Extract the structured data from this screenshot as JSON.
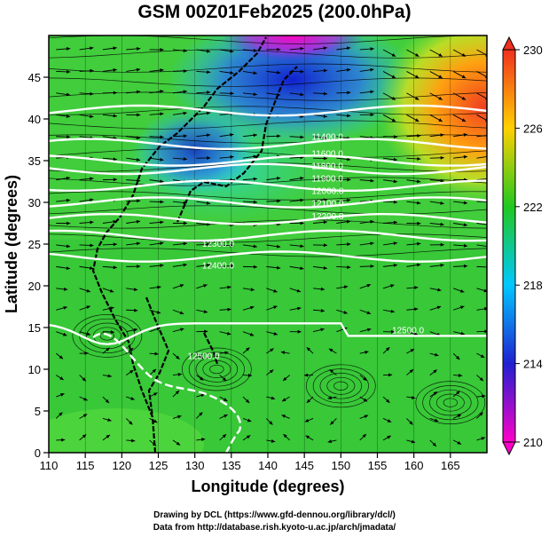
{
  "title": "GSM 00Z01Feb2025 (200.0hPa)",
  "xlabel": "Longitude (degrees)",
  "ylabel": "Latitude (degrees)",
  "credits": [
    "Drawing by DCL (https://www.gfd-dennou.org/library/dcl/)",
    "Data from http://database.rish.kyoto-u.ac.jp/arch/jmadata/"
  ],
  "chart_data": {
    "type": "heatmap",
    "title": "GSM 00Z01Feb2025 (200.0hPa)",
    "xlabel": "Longitude (degrees)",
    "ylabel": "Latitude (degrees)",
    "xlim": [
      110,
      170
    ],
    "ylim": [
      0,
      50
    ],
    "x_ticks": [
      "110",
      "115",
      "120",
      "125",
      "130",
      "135",
      "140",
      "145",
      "150",
      "155",
      "160",
      "165"
    ],
    "y_ticks": [
      "0",
      "5",
      "10",
      "15",
      "20",
      "25",
      "30",
      "35",
      "40",
      "45"
    ],
    "colorbar": {
      "range": [
        210,
        230
      ],
      "ticks": [
        "210",
        "214",
        "218",
        "222",
        "226",
        "230"
      ],
      "label_values": [
        210,
        214,
        218,
        222,
        226,
        230
      ]
    },
    "contours": [
      {
        "label": "11400.0",
        "lat": 41
      },
      {
        "label": "11600.0",
        "lat": 37
      },
      {
        "label": "11800.0",
        "lat": 35
      },
      {
        "label": "11900.0",
        "lat": 34
      },
      {
        "label": "12000.0",
        "lat": 32
      },
      {
        "label": "12100.0",
        "lat": 30
      },
      {
        "label": "12200.0",
        "lat": 28
      },
      {
        "label": "12300.0",
        "lat": 26
      },
      {
        "label": "12400.0",
        "lat": 23.5
      },
      {
        "label": "12500.0",
        "lat": 15.5
      }
    ],
    "contour_label_positions": [
      {
        "text": "11400.0",
        "lon": 146,
        "lat": 37.5
      },
      {
        "text": "11600.0",
        "lon": 146,
        "lat": 35.5
      },
      {
        "text": "11800.0",
        "lon": 146,
        "lat": 34
      },
      {
        "text": "11900.0",
        "lon": 146,
        "lat": 32.5
      },
      {
        "text": "12000.0",
        "lon": 146,
        "lat": 31
      },
      {
        "text": "12100.0",
        "lon": 146,
        "lat": 29.5
      },
      {
        "text": "12200.0",
        "lon": 146,
        "lat": 28
      },
      {
        "text": "12300.0",
        "lon": 131,
        "lat": 24.7
      },
      {
        "text": "12400.0",
        "lon": 131,
        "lat": 22.1
      },
      {
        "text": "12500.0",
        "lon": 157,
        "lat": 14.3
      },
      {
        "text": "12500.0",
        "lon": 129,
        "lat": 11.2
      }
    ]
  }
}
